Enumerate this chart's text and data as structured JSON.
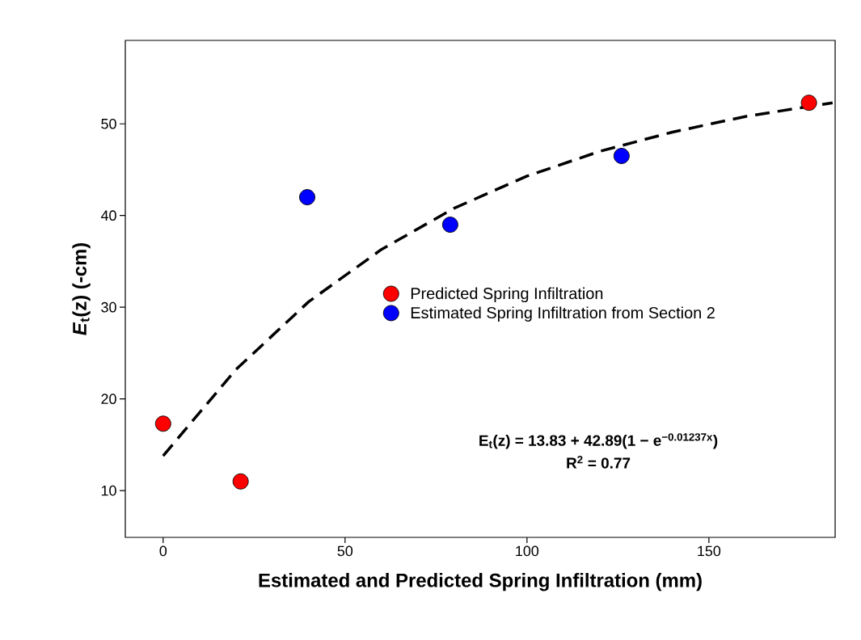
{
  "chart_data": {
    "type": "scatter",
    "xlabel": "Estimated and Predicted Spring Infiltration (mm)",
    "ylabel": "*E*$_{t}$(z) (-cm)",
    "xlim": [
      -10.4,
      184.7
    ],
    "ylim": [
      4.9,
      59.1
    ],
    "xticks": [
      0,
      50,
      100,
      150
    ],
    "yticks": [
      10,
      20,
      30,
      40,
      50
    ],
    "legend": "right",
    "series": [
      {
        "name": "Predicted Spring Infiltration",
        "marker": "circle",
        "color": "#ff0000",
        "x": [
          0,
          21.3,
          177.5
        ],
        "values": [
          17.3,
          11.0,
          52.3
        ]
      },
      {
        "name": "Estimated Spring Infiltration from Section 2",
        "marker": "circle",
        "color": "#0000ff",
        "x": [
          39.6,
          78.9,
          126
        ],
        "values": [
          42.0,
          39.0,
          46.5
        ]
      },
      {
        "type": "line",
        "color": "#000000",
        "line_style": "dashed",
        "marker": "none",
        "x": [
          0,
          20,
          40,
          60,
          80,
          100,
          120,
          140,
          160,
          184
        ],
        "values": [
          13.8,
          23.2,
          30.6,
          36.3,
          40.8,
          44.3,
          47.0,
          49.1,
          50.8,
          52.3
        ]
      }
    ],
    "annotations": [
      "E$_{t}$(z) = 13.83 + 42.89(1 − e$^{−0.01237x}$)",
      "R$^{2}$ = 0.77"
    ]
  }
}
